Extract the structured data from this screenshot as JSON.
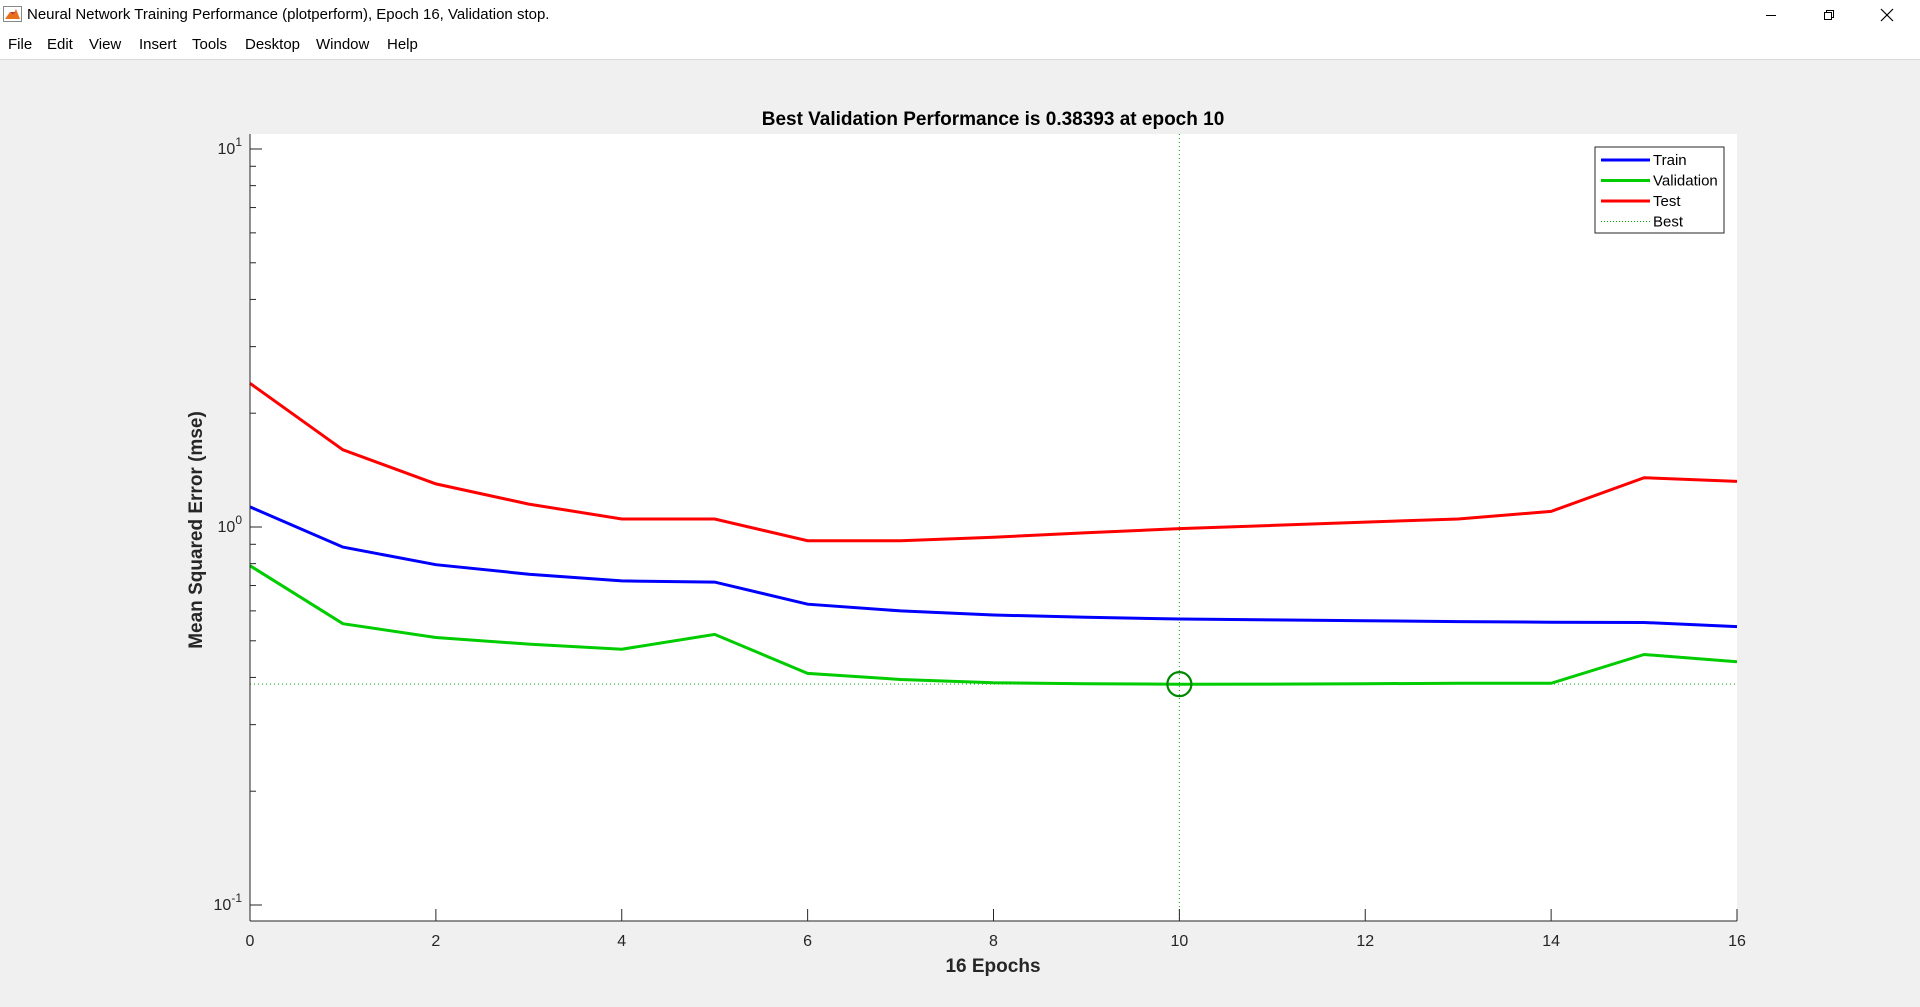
{
  "window": {
    "title": "Neural Network Training Performance (plotperform), Epoch 16, Validation stop.",
    "app_icon": "matlab-icon",
    "controls": {
      "minimize": "minimize-icon",
      "maximize": "restore-icon",
      "close": "close-icon"
    }
  },
  "menubar": {
    "items": [
      "File",
      "Edit",
      "View",
      "Insert",
      "Tools",
      "Desktop",
      "Window",
      "Help"
    ],
    "dock_icon": "dock-arrow-icon"
  },
  "colors": {
    "train": "#0000ff",
    "validation": "#00cc00",
    "test": "#ff0000",
    "best": "#00aa00"
  },
  "chart_data": {
    "type": "line",
    "title": "Best Validation Performance is 0.38393 at epoch 10",
    "xlabel": "16 Epochs",
    "ylabel": "Mean Squared Error  (mse)",
    "xlim": [
      0,
      16
    ],
    "ylim": [
      0.1,
      10
    ],
    "yscale": "log",
    "grid": false,
    "legend_position": "top-right",
    "x_ticks": [
      "0",
      "2",
      "4",
      "6",
      "8",
      "10",
      "12",
      "14",
      "16"
    ],
    "y_ticks": [
      {
        "value": 10,
        "base": "10",
        "exp": "1"
      },
      {
        "value": 1,
        "base": "10",
        "exp": "0"
      },
      {
        "value": 0.1,
        "base": "10",
        "exp": "-1"
      }
    ],
    "x": [
      0,
      1,
      2,
      3,
      4,
      5,
      6,
      7,
      8,
      9,
      10,
      11,
      12,
      13,
      14,
      15,
      16
    ],
    "series": [
      {
        "name": "Train",
        "color": "#0000ff",
        "values": [
          1.13,
          0.885,
          0.795,
          0.75,
          0.72,
          0.715,
          0.625,
          0.6,
          0.585,
          0.577,
          0.571,
          0.568,
          0.565,
          0.562,
          0.56,
          0.559,
          0.545
        ]
      },
      {
        "name": "Validation",
        "color": "#00cc00",
        "values": [
          0.79,
          0.555,
          0.51,
          0.49,
          0.475,
          0.52,
          0.41,
          0.395,
          0.387,
          0.385,
          0.38393,
          0.384,
          0.385,
          0.386,
          0.386,
          0.46,
          0.44
        ]
      },
      {
        "name": "Test",
        "color": "#ff0000",
        "values": [
          2.4,
          1.6,
          1.3,
          1.15,
          1.05,
          1.05,
          0.92,
          0.92,
          0.94,
          0.965,
          0.99,
          1.01,
          1.03,
          1.05,
          1.1,
          1.35,
          1.32
        ]
      }
    ],
    "best": {
      "name": "Best",
      "epoch": 10,
      "value": 0.38393
    }
  }
}
